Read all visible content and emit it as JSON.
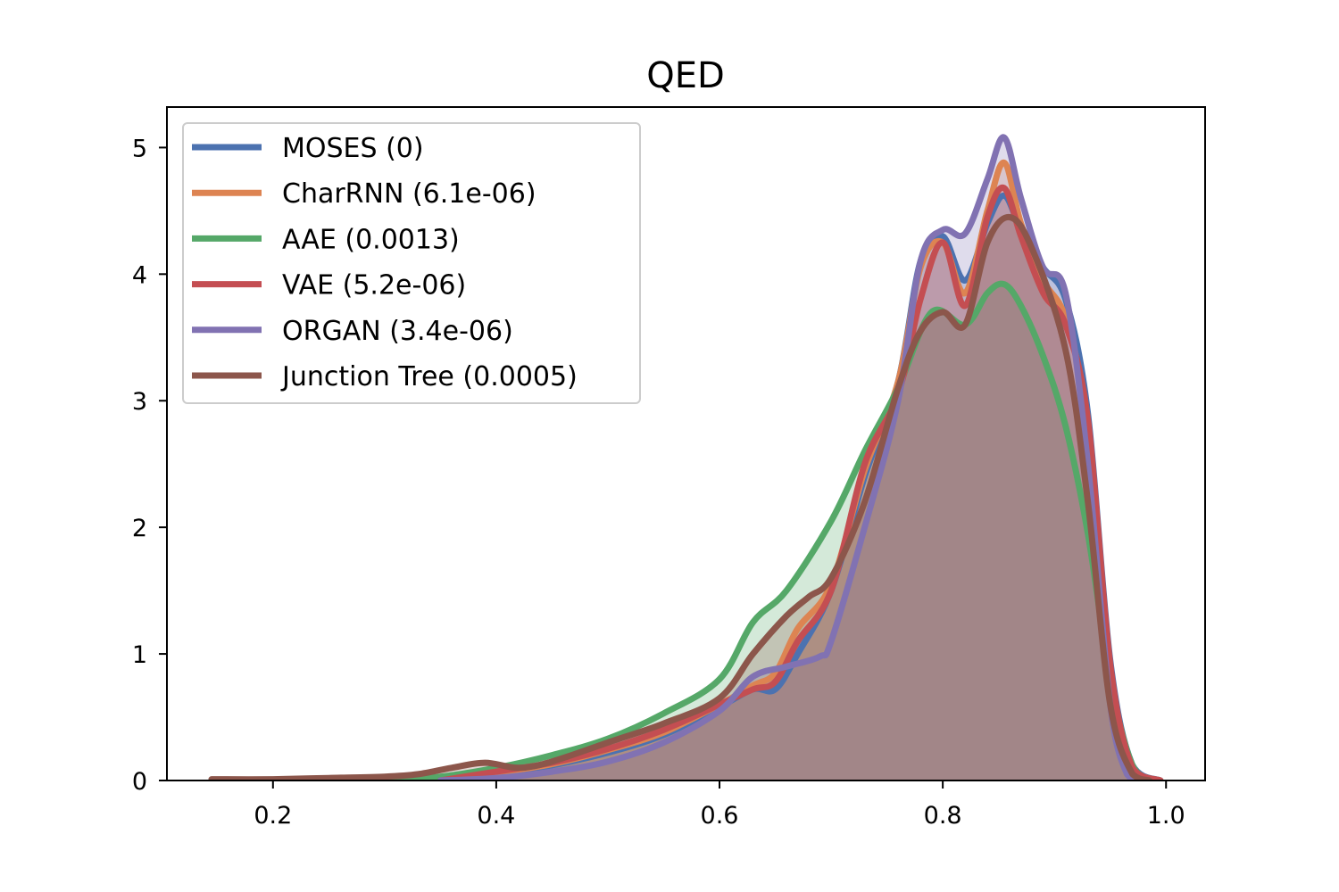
{
  "chart_data": {
    "type": "line",
    "fill": "area-under-curve",
    "title": "QED",
    "xlabel": "",
    "ylabel": "",
    "xlim": [
      0.105,
      1.035
    ],
    "ylim": [
      0,
      5.32
    ],
    "xticks": [
      0.2,
      0.4,
      0.6,
      0.8,
      1.0
    ],
    "xtick_labels": [
      "0.2",
      "0.4",
      "0.6",
      "0.8",
      "1.0"
    ],
    "yticks": [
      0,
      1,
      2,
      3,
      4,
      5
    ],
    "ytick_labels": [
      "0",
      "1",
      "2",
      "3",
      "4",
      "5"
    ],
    "grid": false,
    "legend_position": "top-left",
    "series": [
      {
        "name": "MOSES (0)",
        "color": "#4c72b0",
        "x": [
          0.35,
          0.4,
          0.45,
          0.5,
          0.55,
          0.6,
          0.63,
          0.65,
          0.67,
          0.7,
          0.73,
          0.76,
          0.78,
          0.8,
          0.82,
          0.84,
          0.855,
          0.87,
          0.89,
          0.91,
          0.93,
          0.95,
          0.97,
          0.995
        ],
        "y": [
          0.0,
          0.05,
          0.12,
          0.22,
          0.36,
          0.58,
          0.72,
          0.72,
          1.0,
          1.5,
          2.4,
          3.15,
          4.1,
          4.3,
          3.95,
          4.4,
          4.62,
          4.35,
          4.05,
          3.8,
          2.9,
          0.95,
          0.12,
          0.0
        ]
      },
      {
        "name": "CharRNN (6.1e-06)",
        "color": "#dd8452",
        "x": [
          0.35,
          0.4,
          0.45,
          0.5,
          0.55,
          0.6,
          0.63,
          0.65,
          0.67,
          0.7,
          0.73,
          0.76,
          0.78,
          0.8,
          0.82,
          0.84,
          0.855,
          0.87,
          0.89,
          0.91,
          0.93,
          0.95,
          0.97,
          0.995
        ],
        "y": [
          0.0,
          0.06,
          0.13,
          0.24,
          0.38,
          0.6,
          0.75,
          0.85,
          1.2,
          1.55,
          2.45,
          3.15,
          4.05,
          4.25,
          3.85,
          4.5,
          4.88,
          4.4,
          3.95,
          3.65,
          2.8,
          0.9,
          0.1,
          0.0
        ]
      },
      {
        "name": "AAE (0.0013)",
        "color": "#55a868",
        "x": [
          0.3,
          0.35,
          0.4,
          0.45,
          0.5,
          0.55,
          0.6,
          0.63,
          0.66,
          0.7,
          0.73,
          0.76,
          0.79,
          0.82,
          0.84,
          0.855,
          0.87,
          0.89,
          0.91,
          0.93,
          0.95,
          0.97,
          0.99
        ],
        "y": [
          0.0,
          0.03,
          0.1,
          0.2,
          0.33,
          0.53,
          0.8,
          1.25,
          1.5,
          2.05,
          2.6,
          3.1,
          3.7,
          3.6,
          3.85,
          3.92,
          3.75,
          3.35,
          2.8,
          1.95,
          0.8,
          0.12,
          0.0
        ]
      },
      {
        "name": "VAE (5.2e-06)",
        "color": "#c44e52",
        "x": [
          0.35,
          0.4,
          0.45,
          0.5,
          0.55,
          0.6,
          0.63,
          0.65,
          0.67,
          0.7,
          0.73,
          0.76,
          0.78,
          0.8,
          0.82,
          0.84,
          0.855,
          0.87,
          0.89,
          0.91,
          0.93,
          0.95,
          0.97,
          0.995
        ],
        "y": [
          0.0,
          0.07,
          0.14,
          0.25,
          0.4,
          0.6,
          0.72,
          0.78,
          1.1,
          1.5,
          2.5,
          3.05,
          3.8,
          4.25,
          3.75,
          4.45,
          4.68,
          4.3,
          3.85,
          3.6,
          2.85,
          0.92,
          0.1,
          0.0
        ]
      },
      {
        "name": "ORGAN (3.4e-06)",
        "color": "#8172b2",
        "x": [
          0.35,
          0.4,
          0.45,
          0.5,
          0.55,
          0.6,
          0.63,
          0.66,
          0.69,
          0.7,
          0.73,
          0.76,
          0.78,
          0.8,
          0.82,
          0.84,
          0.855,
          0.87,
          0.89,
          0.91,
          0.93,
          0.95,
          0.965,
          0.975
        ],
        "y": [
          0.0,
          0.02,
          0.07,
          0.15,
          0.3,
          0.55,
          0.82,
          0.9,
          0.98,
          1.1,
          2.0,
          3.0,
          4.1,
          4.35,
          4.32,
          4.75,
          5.08,
          4.6,
          4.05,
          3.85,
          2.5,
          0.6,
          0.05,
          0.0
        ]
      },
      {
        "name": "Junction Tree (0.0005)",
        "color": "#8c564b",
        "x": [
          0.145,
          0.2,
          0.25,
          0.3,
          0.33,
          0.36,
          0.39,
          0.42,
          0.45,
          0.5,
          0.55,
          0.6,
          0.63,
          0.66,
          0.68,
          0.7,
          0.73,
          0.76,
          0.78,
          0.8,
          0.82,
          0.84,
          0.86,
          0.88,
          0.91,
          0.93,
          0.95,
          0.97,
          0.985
        ],
        "y": [
          0.01,
          0.01,
          0.02,
          0.03,
          0.05,
          0.1,
          0.14,
          0.1,
          0.15,
          0.3,
          0.45,
          0.65,
          1.0,
          1.3,
          1.45,
          1.6,
          2.2,
          3.1,
          3.55,
          3.7,
          3.6,
          4.25,
          4.45,
          4.2,
          3.4,
          2.2,
          0.6,
          0.05,
          0.0
        ]
      }
    ]
  }
}
